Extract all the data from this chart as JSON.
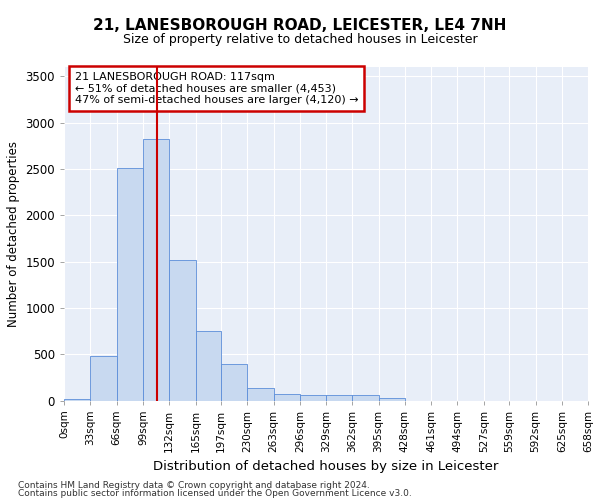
{
  "title_line1": "21, LANESBOROUGH ROAD, LEICESTER, LE4 7NH",
  "title_line2": "Size of property relative to detached houses in Leicester",
  "xlabel": "Distribution of detached houses by size in Leicester",
  "ylabel": "Number of detached properties",
  "annotation_title": "21 LANESBOROUGH ROAD: 117sqm",
  "annotation_line2": "← 51% of detached houses are smaller (4,453)",
  "annotation_line3": "47% of semi-detached houses are larger (4,120) →",
  "vline_x": 117,
  "bin_edges": [
    0,
    33,
    66,
    99,
    132,
    165,
    197,
    230,
    263,
    296,
    329,
    362,
    395,
    428,
    461,
    494,
    527,
    559,
    592,
    625,
    658
  ],
  "bar_heights": [
    20,
    480,
    2510,
    2820,
    1520,
    750,
    390,
    140,
    75,
    55,
    55,
    55,
    25,
    0,
    0,
    0,
    0,
    0,
    0,
    0
  ],
  "bar_color": "#c8d9f0",
  "bar_edge_color": "#5b8dd9",
  "vline_color": "#cc0000",
  "background_color": "#e8eef8",
  "grid_color": "#ffffff",
  "annotation_box_color": "#cc0000",
  "ylim": [
    0,
    3600
  ],
  "yticks": [
    0,
    500,
    1000,
    1500,
    2000,
    2500,
    3000,
    3500
  ],
  "footnote1": "Contains HM Land Registry data © Crown copyright and database right 2024.",
  "footnote2": "Contains public sector information licensed under the Open Government Licence v3.0."
}
